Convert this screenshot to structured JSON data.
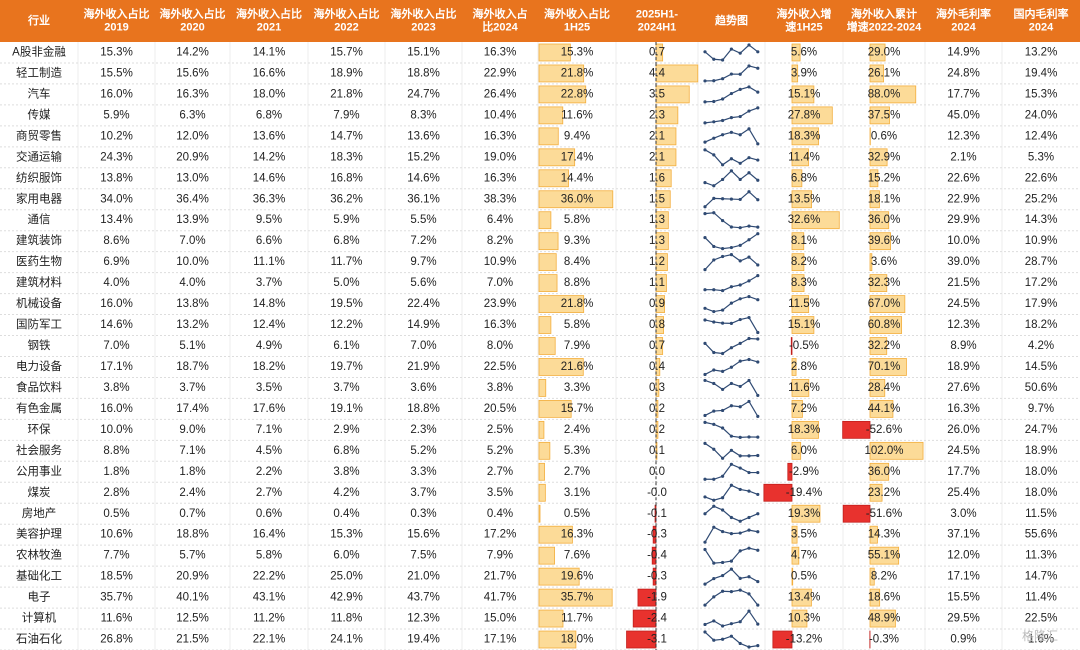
{
  "table": {
    "header": [
      [
        "行业"
      ],
      [
        "海外收入占比",
        "2019"
      ],
      [
        "海外收入占比",
        "2020"
      ],
      [
        "海外收入占比",
        "2021"
      ],
      [
        "海外收入占比",
        "2022"
      ],
      [
        "海外收入占比",
        "2023"
      ],
      [
        "海外收入占",
        "比2024"
      ],
      [
        "海外收入占比",
        "1H25"
      ],
      [
        "2025H1-",
        "2024H1"
      ],
      [
        "趋势图"
      ],
      [
        "海外收入增",
        "速1H25"
      ],
      [
        "海外收入累计",
        "增速2022-2024"
      ],
      [
        "海外毛利率",
        "2024"
      ],
      [
        "国内毛利率",
        "2024"
      ]
    ],
    "rows": [
      [
        "A股非金融",
        "15.3%",
        "14.2%",
        "14.1%",
        "15.7%",
        "15.1%",
        "16.3%",
        "15.3%",
        "0.7",
        "5.6%",
        "29.0%",
        "14.9%",
        "13.2%"
      ],
      [
        "轻工制造",
        "15.5%",
        "15.6%",
        "16.6%",
        "18.9%",
        "18.8%",
        "22.9%",
        "21.8%",
        "4.4",
        "3.9%",
        "26.1%",
        "24.8%",
        "19.4%"
      ],
      [
        "汽车",
        "16.0%",
        "16.3%",
        "18.0%",
        "21.8%",
        "24.7%",
        "26.4%",
        "22.8%",
        "3.5",
        "15.1%",
        "88.0%",
        "17.7%",
        "15.3%"
      ],
      [
        "传媒",
        "5.9%",
        "6.3%",
        "6.8%",
        "7.9%",
        "8.3%",
        "10.4%",
        "11.6%",
        "2.3",
        "27.8%",
        "37.5%",
        "45.0%",
        "24.0%"
      ],
      [
        "商贸零售",
        "10.2%",
        "12.0%",
        "13.6%",
        "14.7%",
        "13.6%",
        "16.3%",
        "9.4%",
        "2.1",
        "18.3%",
        "0.6%",
        "12.3%",
        "12.4%"
      ],
      [
        "交通运输",
        "24.3%",
        "20.9%",
        "14.2%",
        "18.3%",
        "15.2%",
        "19.0%",
        "17.4%",
        "2.1",
        "11.4%",
        "32.9%",
        "2.1%",
        "5.3%"
      ],
      [
        "纺织服饰",
        "13.8%",
        "13.0%",
        "14.6%",
        "16.8%",
        "14.6%",
        "16.3%",
        "14.4%",
        "1.6",
        "6.8%",
        "15.2%",
        "22.6%",
        "22.6%"
      ],
      [
        "家用电器",
        "34.0%",
        "36.4%",
        "36.3%",
        "36.2%",
        "36.1%",
        "38.3%",
        "36.0%",
        "1.5",
        "13.5%",
        "18.1%",
        "22.9%",
        "25.2%"
      ],
      [
        "通信",
        "13.4%",
        "13.9%",
        "9.5%",
        "5.9%",
        "5.5%",
        "6.4%",
        "5.8%",
        "1.3",
        "32.6%",
        "36.0%",
        "29.9%",
        "14.3%"
      ],
      [
        "建筑装饰",
        "8.6%",
        "7.0%",
        "6.6%",
        "6.8%",
        "7.2%",
        "8.2%",
        "9.3%",
        "1.3",
        "8.1%",
        "39.6%",
        "10.0%",
        "10.9%"
      ],
      [
        "医药生物",
        "6.9%",
        "10.0%",
        "11.1%",
        "11.7%",
        "9.7%",
        "10.9%",
        "8.4%",
        "1.2",
        "8.2%",
        "3.6%",
        "39.0%",
        "28.7%"
      ],
      [
        "建筑材料",
        "4.0%",
        "4.0%",
        "3.7%",
        "5.0%",
        "5.6%",
        "7.0%",
        "8.8%",
        "1.1",
        "8.3%",
        "32.3%",
        "21.5%",
        "17.2%"
      ],
      [
        "机械设备",
        "16.0%",
        "13.8%",
        "14.8%",
        "19.5%",
        "22.4%",
        "23.9%",
        "21.8%",
        "0.9",
        "11.5%",
        "67.0%",
        "24.5%",
        "17.9%"
      ],
      [
        "国防军工",
        "14.6%",
        "13.2%",
        "12.4%",
        "12.2%",
        "14.9%",
        "16.3%",
        "5.8%",
        "0.8",
        "15.1%",
        "60.8%",
        "12.3%",
        "18.2%"
      ],
      [
        "钢铁",
        "7.0%",
        "5.1%",
        "4.9%",
        "6.1%",
        "7.0%",
        "8.0%",
        "7.9%",
        "0.7",
        "-0.5%",
        "32.2%",
        "8.9%",
        "4.2%"
      ],
      [
        "电力设备",
        "17.1%",
        "18.7%",
        "18.2%",
        "19.7%",
        "21.9%",
        "22.5%",
        "21.6%",
        "0.4",
        "2.8%",
        "70.1%",
        "18.9%",
        "14.5%"
      ],
      [
        "食品饮料",
        "3.8%",
        "3.7%",
        "3.5%",
        "3.7%",
        "3.6%",
        "3.8%",
        "3.3%",
        "0.3",
        "11.6%",
        "28.4%",
        "27.6%",
        "50.6%"
      ],
      [
        "有色金属",
        "16.0%",
        "17.4%",
        "17.6%",
        "19.1%",
        "18.8%",
        "20.5%",
        "15.7%",
        "0.2",
        "7.2%",
        "44.1%",
        "16.3%",
        "9.7%"
      ],
      [
        "环保",
        "10.0%",
        "9.0%",
        "7.1%",
        "2.9%",
        "2.3%",
        "2.5%",
        "2.4%",
        "0.2",
        "18.3%",
        "-52.6%",
        "26.0%",
        "24.7%"
      ],
      [
        "社会服务",
        "8.8%",
        "7.1%",
        "4.5%",
        "6.8%",
        "5.2%",
        "5.2%",
        "5.3%",
        "0.1",
        "6.0%",
        "102.0%",
        "24.5%",
        "18.9%"
      ],
      [
        "公用事业",
        "1.8%",
        "1.8%",
        "2.2%",
        "3.8%",
        "3.3%",
        "2.7%",
        "2.7%",
        "0.0",
        "-2.9%",
        "36.0%",
        "17.7%",
        "18.0%"
      ],
      [
        "煤炭",
        "2.8%",
        "2.4%",
        "2.7%",
        "4.2%",
        "3.7%",
        "3.5%",
        "3.1%",
        "-0.0",
        "-19.4%",
        "23.2%",
        "25.4%",
        "18.0%"
      ],
      [
        "房地产",
        "0.5%",
        "0.7%",
        "0.6%",
        "0.4%",
        "0.3%",
        "0.4%",
        "0.5%",
        "-0.1",
        "19.3%",
        "-51.6%",
        "3.0%",
        "11.5%"
      ],
      [
        "美容护理",
        "10.6%",
        "18.8%",
        "16.4%",
        "15.3%",
        "15.6%",
        "17.2%",
        "16.3%",
        "-0.3",
        "3.5%",
        "14.3%",
        "37.1%",
        "55.6%"
      ],
      [
        "农林牧渔",
        "7.7%",
        "5.7%",
        "5.8%",
        "6.0%",
        "7.5%",
        "7.9%",
        "7.6%",
        "-0.4",
        "4.7%",
        "55.1%",
        "12.0%",
        "11.3%"
      ],
      [
        "基础化工",
        "18.5%",
        "20.9%",
        "22.2%",
        "25.0%",
        "21.0%",
        "21.7%",
        "19.6%",
        "-0.3",
        "0.5%",
        "8.2%",
        "17.1%",
        "14.7%"
      ],
      [
        "电子",
        "35.7%",
        "40.1%",
        "43.1%",
        "42.9%",
        "43.7%",
        "41.7%",
        "35.7%",
        "-1.9",
        "13.4%",
        "18.6%",
        "15.5%",
        "11.4%"
      ],
      [
        "计算机",
        "11.6%",
        "12.5%",
        "11.2%",
        "11.8%",
        "12.3%",
        "15.0%",
        "11.7%",
        "-2.4",
        "10.3%",
        "48.9%",
        "29.5%",
        "22.5%"
      ],
      [
        "石油石化",
        "26.8%",
        "21.5%",
        "22.1%",
        "24.1%",
        "19.4%",
        "17.1%",
        "18.0%",
        "-3.1",
        "-13.2%",
        "-0.3%",
        "0.9%",
        "1.6%"
      ]
    ]
  },
  "watermark": "格隆汇"
}
